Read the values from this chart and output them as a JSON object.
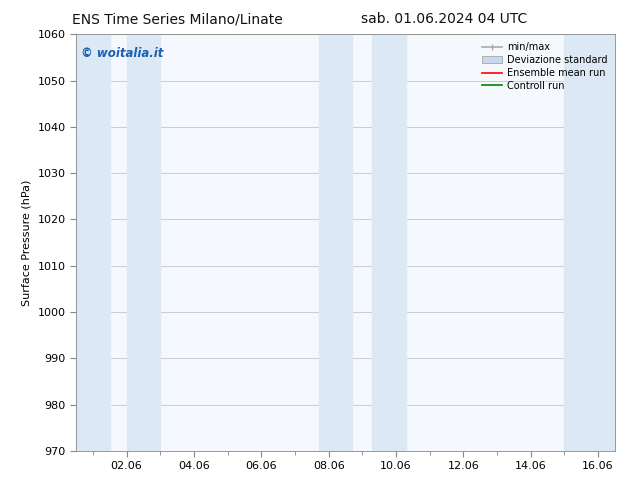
{
  "title_left": "ENS Time Series Milano/Linate",
  "title_right": "sab. 01.06.2024 04 UTC",
  "ylabel": "Surface Pressure (hPa)",
  "ylim": [
    970,
    1060
  ],
  "yticks": [
    970,
    980,
    990,
    1000,
    1010,
    1020,
    1030,
    1040,
    1050,
    1060
  ],
  "xlim_start": 0.5,
  "xlim_end": 16.5,
  "xtick_labels": [
    "02.06",
    "04.06",
    "06.06",
    "08.06",
    "10.06",
    "12.06",
    "14.06",
    "16.06"
  ],
  "xtick_positions": [
    2,
    4,
    6,
    8,
    10,
    12,
    14,
    16
  ],
  "shaded_bands": [
    {
      "x_start": 0.5,
      "x_end": 1.5
    },
    {
      "x_start": 2.0,
      "x_end": 3.0
    },
    {
      "x_start": 7.7,
      "x_end": 8.7
    },
    {
      "x_start": 9.3,
      "x_end": 10.3
    },
    {
      "x_start": 15.0,
      "x_end": 16.5
    }
  ],
  "band_color": "#dce9f5",
  "watermark_text": "© woitalia.it",
  "watermark_color": "#1a5fb4",
  "legend_items": [
    {
      "label": "min/max",
      "type": "errorbar",
      "color": "#aaaaaa"
    },
    {
      "label": "Deviazione standard",
      "type": "bar",
      "color": "#c8d8ee"
    },
    {
      "label": "Ensemble mean run",
      "type": "line",
      "color": "red"
    },
    {
      "label": "Controll run",
      "type": "line",
      "color": "green"
    }
  ],
  "bg_color": "#ffffff",
  "plot_bg_color": "#f5f9fd",
  "title_fontsize": 10,
  "tick_fontsize": 8,
  "ylabel_fontsize": 8
}
